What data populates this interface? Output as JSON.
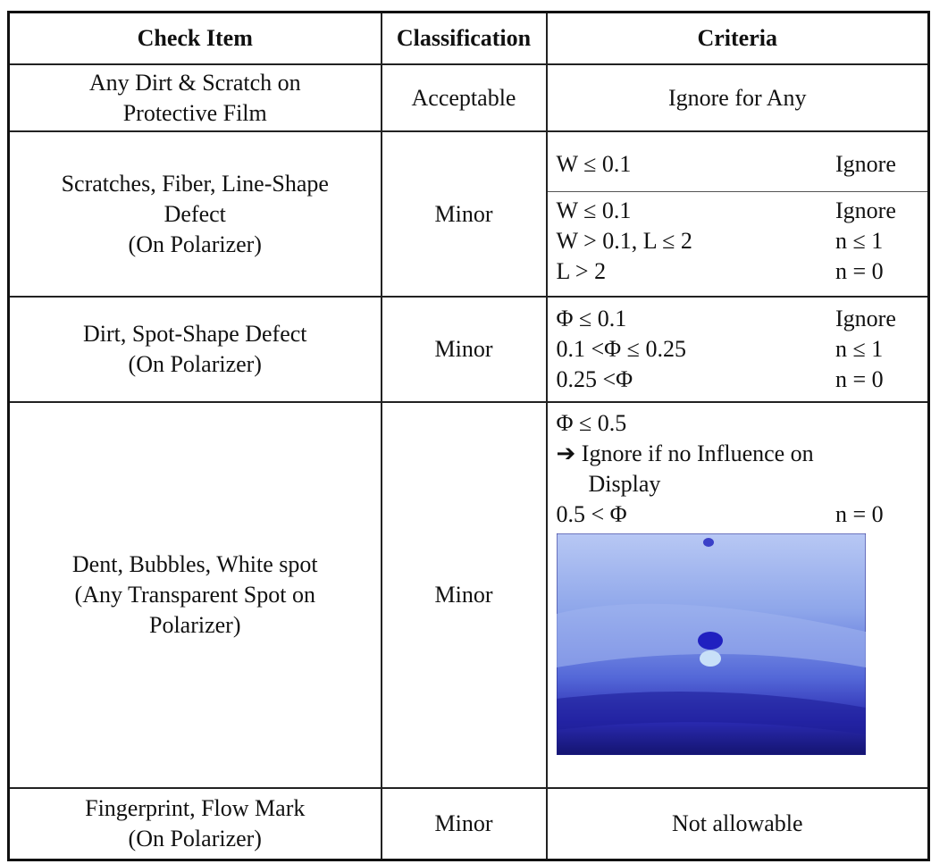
{
  "table": {
    "header": [
      "Check Item",
      "Classification",
      "Criteria"
    ],
    "rows": [
      {
        "item": [
          "Any Dirt & Scratch on",
          "Protective Film"
        ],
        "classification": "Acceptable",
        "criteria": "Ignore for Any"
      },
      {
        "item": [
          "Scratches, Fiber, Line-Shape",
          "Defect",
          "(On Polarizer)"
        ],
        "classification": "Minor",
        "criteria_blocks": [
          [
            [
              "W ≤ 0.1",
              "Ignore"
            ]
          ],
          [
            [
              "W ≤ 0.1",
              "Ignore"
            ],
            [
              "W > 0.1, L ≤ 2",
              "n ≤ 1"
            ],
            [
              "L > 2",
              "n = 0"
            ]
          ]
        ]
      },
      {
        "item": [
          "Dirt, Spot-Shape Defect",
          "(On Polarizer)"
        ],
        "classification": "Minor",
        "criteria_lines": [
          [
            "Φ ≤ 0.1",
            "Ignore"
          ],
          [
            "0.1 <Φ ≤ 0.25",
            "n ≤ 1"
          ],
          [
            "0.25 <Φ",
            "n = 0"
          ]
        ]
      },
      {
        "item": [
          "Dent, Bubbles, White spot",
          "(Any Transparent Spot on",
          "Polarizer)"
        ],
        "classification": "Minor",
        "criteria_text": [
          "Φ ≤ 0.5",
          "➔ Ignore if no Influence on",
          "Display"
        ],
        "criteria_lines": [
          [
            "0.5 < Φ",
            "n = 0"
          ]
        ]
      },
      {
        "item": [
          "Fingerprint, Flow Mark",
          "(On Polarizer)"
        ],
        "classification": "Minor",
        "criteria": "Not allowable"
      }
    ]
  }
}
